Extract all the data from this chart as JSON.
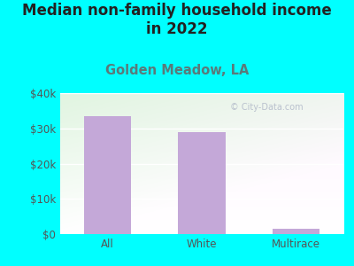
{
  "title": "Median non-family household income\nin 2022",
  "subtitle": "Golden Meadow, LA",
  "categories": [
    "All",
    "White",
    "Multirace"
  ],
  "values": [
    33500,
    29000,
    1500
  ],
  "bar_color": "#c4a8d8",
  "title_fontsize": 12,
  "subtitle_fontsize": 10.5,
  "subtitle_color": "#5a7a7a",
  "title_color": "#222222",
  "tick_color": "#555555",
  "background_outer": "#00ffff",
  "ylim": [
    0,
    40000
  ],
  "yticks": [
    0,
    10000,
    20000,
    30000,
    40000
  ],
  "ytick_labels": [
    "$0",
    "$10k",
    "$20k",
    "$30k",
    "$40k"
  ],
  "watermark": "© City-Data.com"
}
